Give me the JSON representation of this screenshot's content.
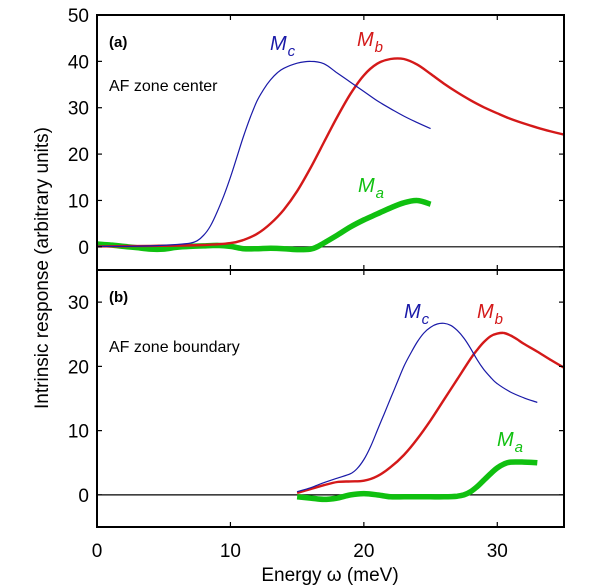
{
  "chart_data": [
    {
      "type": "line",
      "panel_tag": "(a)",
      "annotation": "AF zone center",
      "xlabel": "Energy ω (meV)",
      "ylabel": "Intrinsic response (arbitrary units)",
      "xlim": [
        0,
        35
      ],
      "ylim": [
        -5,
        50
      ],
      "xticks": [
        0,
        10,
        20,
        30
      ],
      "yticks": [
        0,
        10,
        20,
        30,
        40,
        50
      ],
      "zero_line": true,
      "grid": false,
      "series": [
        {
          "name": "M_c",
          "label_main": "M",
          "label_sub": "c",
          "color": "#1a1aa8",
          "weight": "thin",
          "x": [
            0,
            2,
            4,
            6,
            7,
            7.5,
            8,
            8.5,
            9,
            9.5,
            10,
            10.5,
            11,
            11.5,
            12,
            12.5,
            13,
            13.5,
            14,
            15,
            16,
            17,
            18,
            19,
            20,
            21,
            22,
            23,
            24,
            25
          ],
          "y": [
            0.1,
            0.1,
            0.2,
            0.5,
            0.8,
            1.3,
            2.5,
            4.5,
            7.5,
            11,
            15,
            19.5,
            24,
            28,
            31.5,
            34,
            36,
            37.5,
            38.5,
            39.6,
            40,
            39.5,
            37.5,
            35.5,
            33.5,
            31.5,
            29.8,
            28.2,
            26.8,
            25.5
          ]
        },
        {
          "name": "M_b",
          "label_main": "M",
          "label_sub": "b",
          "color": "#d41919",
          "weight": "medium",
          "x": [
            0,
            4,
            8,
            10,
            11,
            12,
            13,
            14,
            15,
            16,
            17,
            18,
            19,
            20,
            21,
            22,
            23,
            24,
            25,
            26,
            27,
            28,
            29,
            30,
            31,
            32,
            33,
            34,
            35
          ],
          "y": [
            0.1,
            0.2,
            0.4,
            0.8,
            1.5,
            2.8,
            5,
            8,
            12,
            17,
            22.5,
            28,
            33,
            37,
            39.5,
            40.5,
            40.5,
            39.3,
            37.3,
            35.2,
            33.3,
            31.6,
            30.1,
            28.8,
            27.6,
            26.6,
            25.7,
            24.9,
            24.2
          ]
        },
        {
          "name": "M_a",
          "label_main": "M",
          "label_sub": "a",
          "color": "#10c010",
          "weight": "thick",
          "x": [
            0,
            1,
            2,
            3,
            4,
            5,
            6,
            7,
            8,
            9,
            10,
            11,
            12,
            13,
            14,
            15,
            16,
            16.5,
            17,
            18,
            19,
            20,
            21,
            22,
            23,
            24,
            25
          ],
          "y": [
            0.6,
            0.4,
            0.1,
            -0.2,
            -0.5,
            -0.5,
            -0.1,
            0.1,
            0.2,
            0.3,
            0.1,
            -0.4,
            -0.4,
            -0.3,
            -0.4,
            -0.6,
            -0.5,
            0,
            0.8,
            2.5,
            4.3,
            5.8,
            7.1,
            8.4,
            9.5,
            10,
            9.2
          ]
        }
      ]
    },
    {
      "type": "line",
      "panel_tag": "(b)",
      "annotation": "AF zone boundary",
      "xlabel": "Energy ω (meV)",
      "ylabel": "Intrinsic response (arbitrary units)",
      "xlim": [
        0,
        35
      ],
      "ylim": [
        -5,
        35
      ],
      "xticks": [
        0,
        10,
        20,
        30
      ],
      "xtick_labels": [
        "0",
        "10",
        "20",
        "30"
      ],
      "yticks": [
        0,
        10,
        20,
        30
      ],
      "zero_line": true,
      "grid": false,
      "series": [
        {
          "name": "M_c",
          "label_main": "M",
          "label_sub": "c",
          "color": "#1a1aa8",
          "weight": "thin",
          "x": [
            15,
            16,
            17,
            18,
            19,
            19.5,
            20,
            20.5,
            21,
            21.5,
            22,
            22.5,
            23,
            23.5,
            24,
            24.5,
            25,
            25.5,
            26,
            26.5,
            27,
            27.5,
            28,
            28.5,
            29,
            29.5,
            30,
            31,
            32,
            33
          ],
          "y": [
            0.5,
            1.1,
            1.9,
            2.6,
            3.3,
            4.1,
            5.5,
            7.5,
            10,
            12.5,
            15,
            17.5,
            20,
            22,
            23.8,
            25.2,
            26.1,
            26.6,
            26.7,
            26.4,
            25.6,
            24.4,
            22.8,
            21,
            19.5,
            18.3,
            17.3,
            16,
            15.1,
            14.4
          ]
        },
        {
          "name": "M_b",
          "label_main": "M",
          "label_sub": "b",
          "color": "#d41919",
          "weight": "medium",
          "x": [
            15,
            16,
            17,
            18,
            19,
            20,
            21,
            22,
            23,
            24,
            25,
            26,
            27,
            28,
            28.5,
            29,
            29.5,
            30,
            30.5,
            31,
            31.5,
            32,
            33,
            34,
            35
          ],
          "y": [
            0.3,
            0.9,
            1.5,
            2.0,
            2.1,
            2.2,
            2.9,
            4.3,
            6.2,
            8.7,
            11.6,
            14.8,
            18,
            21.2,
            22.6,
            23.8,
            24.7,
            25.1,
            25.2,
            24.8,
            24.2,
            23.5,
            22.3,
            21,
            19.8
          ]
        },
        {
          "name": "M_a",
          "label_main": "M",
          "label_sub": "a",
          "color": "#10c010",
          "weight": "thick",
          "x": [
            15,
            16,
            17,
            18,
            19,
            20,
            21,
            22,
            23,
            24,
            25,
            26,
            27,
            27.5,
            28,
            28.5,
            29,
            29.5,
            30,
            30.5,
            31,
            32,
            33
          ],
          "y": [
            -0.3,
            -0.5,
            -0.7,
            -0.5,
            0,
            0.2,
            0,
            -0.3,
            -0.3,
            -0.3,
            -0.3,
            -0.3,
            -0.2,
            0,
            0.5,
            1.3,
            2.3,
            3.3,
            4.2,
            4.8,
            5.1,
            5.1,
            5.0
          ]
        }
      ]
    }
  ],
  "labels": {
    "ylabel": "Intrinsic response (arbitrary units)",
    "xlabel": "Energy ω (meV)"
  }
}
